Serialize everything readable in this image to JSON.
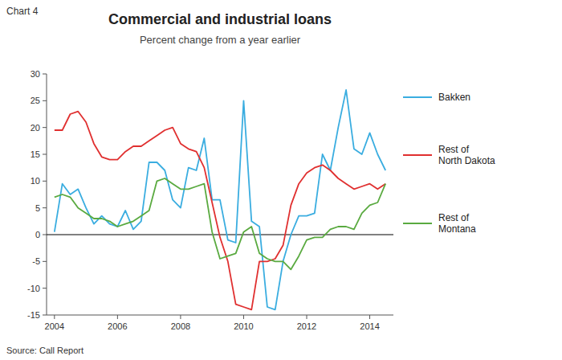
{
  "chart_data": {
    "type": "line",
    "title": "Commercial and industrial loans",
    "subtitle": "Percent change from a year earlier",
    "annotations": [
      "Chart 4",
      "Source: Call Report"
    ],
    "x": [
      2004.0,
      2004.25,
      2004.5,
      2004.75,
      2005.0,
      2005.25,
      2005.5,
      2005.75,
      2006.0,
      2006.25,
      2006.5,
      2006.75,
      2007.0,
      2007.25,
      2007.5,
      2007.75,
      2008.0,
      2008.25,
      2008.5,
      2008.75,
      2009.0,
      2009.25,
      2009.5,
      2009.75,
      2010.0,
      2010.25,
      2010.5,
      2010.75,
      2011.0,
      2011.25,
      2011.5,
      2011.75,
      2012.0,
      2012.25,
      2012.5,
      2012.75,
      2013.0,
      2013.25,
      2013.5,
      2013.75,
      2014.0,
      2014.25,
      2014.5
    ],
    "series": [
      {
        "name": "Bakken",
        "color": "#3aade0",
        "values": [
          0.5,
          9.5,
          7.5,
          8.5,
          5.0,
          2.0,
          3.5,
          2.0,
          1.5,
          4.5,
          1.0,
          2.5,
          13.5,
          13.5,
          12.0,
          6.5,
          5.0,
          12.5,
          12.0,
          18.0,
          6.5,
          6.5,
          -1.0,
          -1.5,
          25.0,
          2.5,
          1.5,
          -13.5,
          -14.0,
          -5.0,
          0.0,
          3.5,
          3.5,
          4.0,
          15.0,
          12.0,
          20.0,
          27.0,
          16.0,
          15.0,
          19.0,
          15.0,
          12.0
        ]
      },
      {
        "name": "Rest of\nNorth Dakota",
        "color": "#e03030",
        "values": [
          19.5,
          19.5,
          22.5,
          23.0,
          21.0,
          17.0,
          14.5,
          14.0,
          14.0,
          15.5,
          16.5,
          16.5,
          17.5,
          18.5,
          19.5,
          20.0,
          17.0,
          16.0,
          15.5,
          12.5,
          6.0,
          -0.5,
          -5.0,
          -13.0,
          -13.5,
          -14.0,
          -5.0,
          -5.0,
          -4.5,
          -2.0,
          5.5,
          9.5,
          11.5,
          12.5,
          13.0,
          12.0,
          10.5,
          9.5,
          8.5,
          9.0,
          9.5,
          8.5,
          9.5
        ]
      },
      {
        "name": "Rest of\nMontana",
        "color": "#5aaa40",
        "values": [
          7.0,
          7.5,
          7.0,
          5.0,
          4.0,
          3.0,
          3.0,
          2.5,
          1.5,
          2.0,
          2.5,
          3.5,
          4.5,
          10.0,
          10.5,
          9.5,
          8.5,
          8.5,
          9.0,
          9.5,
          0.5,
          -4.5,
          -4.0,
          -3.5,
          0.5,
          1.5,
          -3.5,
          -4.5,
          -5.0,
          -5.0,
          -6.5,
          -4.0,
          -1.0,
          -0.5,
          -0.5,
          1.0,
          1.5,
          1.5,
          1.0,
          4.0,
          5.5,
          6.0,
          9.5
        ]
      }
    ],
    "xlim": [
      2003.75,
      2014.75
    ],
    "ylim": [
      -15,
      30
    ],
    "xticks": [
      2004,
      2006,
      2008,
      2010,
      2012,
      2014
    ],
    "yticks": [
      -15,
      -10,
      -5,
      0,
      5,
      10,
      15,
      20,
      25,
      30
    ],
    "grid": false,
    "legend": "right"
  }
}
